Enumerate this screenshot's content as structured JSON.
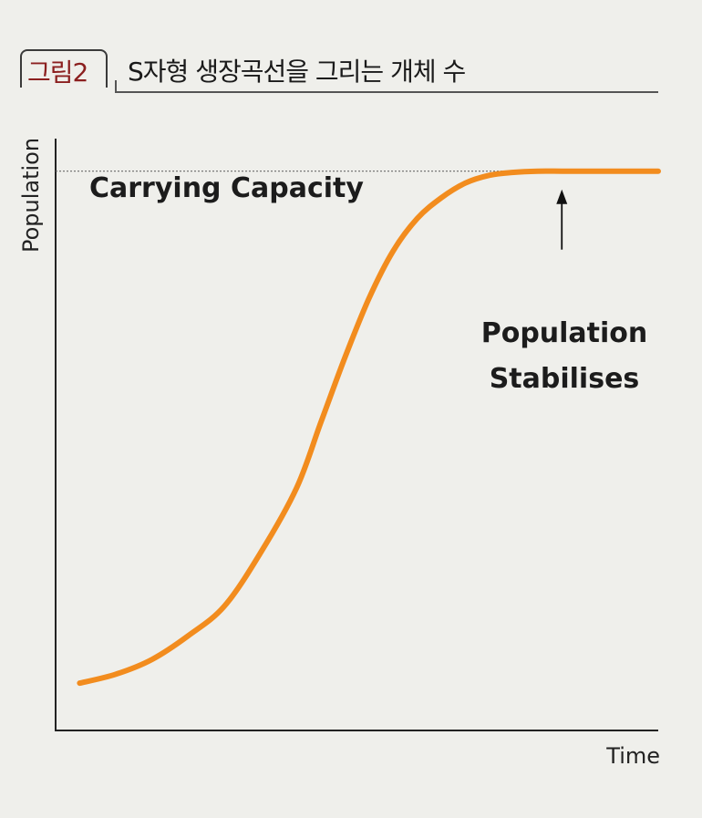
{
  "figure": {
    "tag": "그림2",
    "title": "S자형 생장곡선을 그리는 개체 수"
  },
  "chart_data": {
    "type": "line",
    "title": "",
    "xlabel": "Time",
    "ylabel": "Population",
    "xlim": [
      0,
      100
    ],
    "ylim": [
      0,
      100
    ],
    "grid": false,
    "series": [
      {
        "color": "#f28c1e",
        "x": [
          4,
          10,
          16,
          22,
          28,
          34,
          40,
          44,
          48,
          52,
          56,
          60,
          64,
          68,
          72,
          76,
          80,
          84,
          88,
          92,
          96,
          100
        ],
        "y": [
          8,
          9.5,
          12,
          16,
          21,
          30,
          41,
          52,
          63,
          73,
          81,
          86.5,
          90,
          92.5,
          93.8,
          94.3,
          94.5,
          94.5,
          94.5,
          94.5,
          94.5,
          94.5
        ]
      }
    ],
    "reference_line": {
      "y": 94.5,
      "label": "Carrying Capacity",
      "style": "dashed"
    },
    "annotation": {
      "lines": [
        "Population",
        "Stabilises"
      ],
      "arrow_x": 84,
      "arrow_y": 94.5
    }
  }
}
